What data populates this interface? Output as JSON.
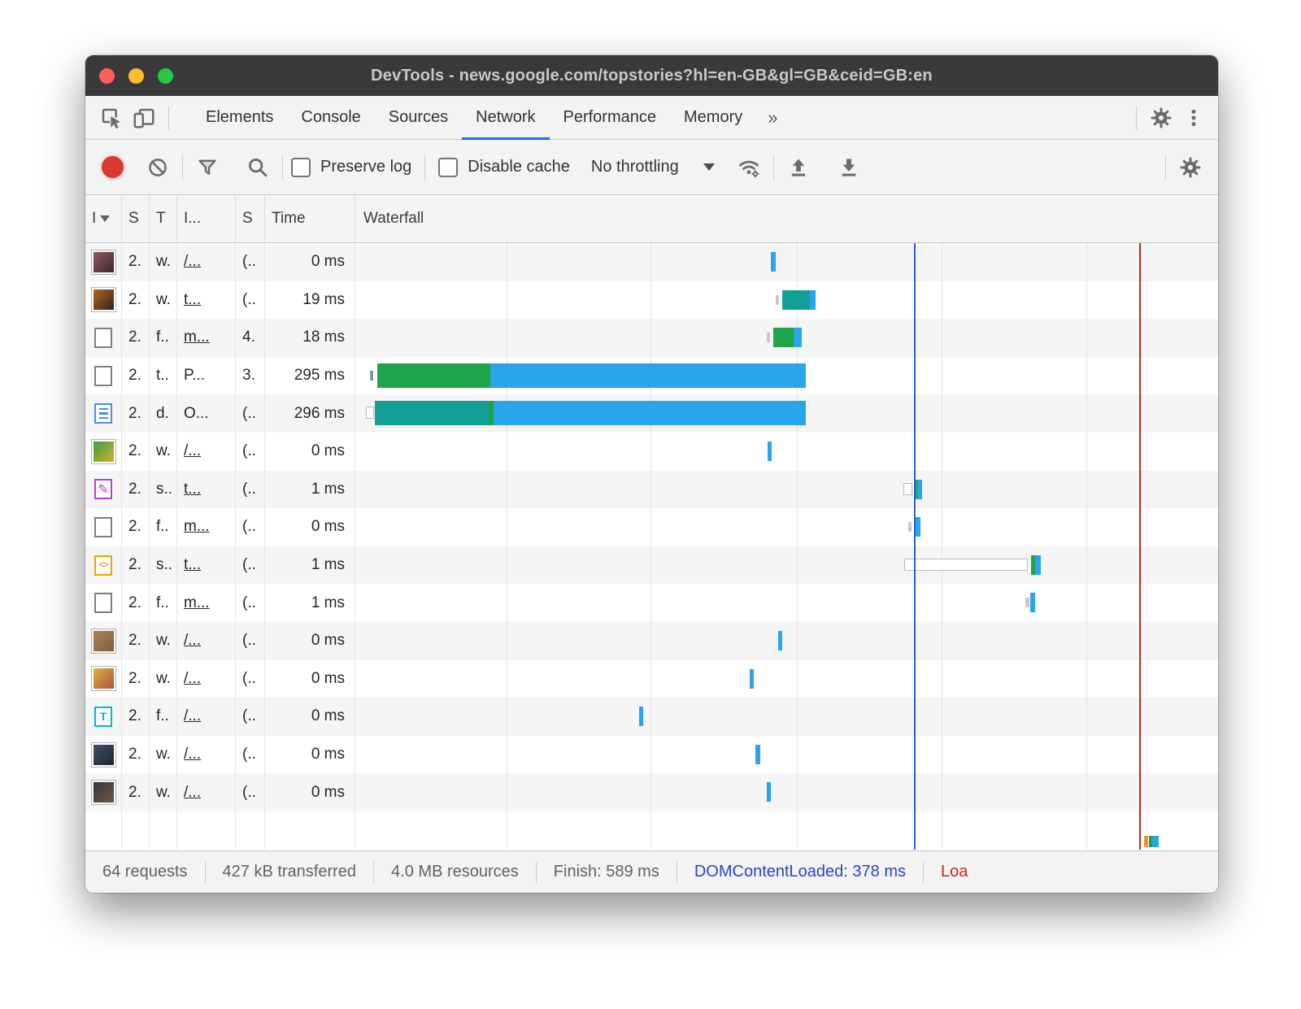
{
  "window": {
    "title": "DevTools - news.google.com/topstories?hl=en-GB&gl=GB&ceid=GB:en"
  },
  "tabs": {
    "items": [
      "Elements",
      "Console",
      "Sources",
      "Network",
      "Performance",
      "Memory"
    ],
    "selected": "Network",
    "overflow": "»"
  },
  "toolbar": {
    "preserve_log": "Preserve log",
    "disable_cache": "Disable cache",
    "throttling": "No throttling"
  },
  "table": {
    "headers": {
      "name": "I",
      "status": "S",
      "type": "T",
      "initiator": "I...",
      "size": "S",
      "time": "Time",
      "waterfall": "Waterfall"
    }
  },
  "waterfall": {
    "gridlines_pct": [
      17.5,
      34.2,
      51.2,
      68.0,
      84.7
    ],
    "domcontentloaded_line_pct": 64.75,
    "load_line_pct": 90.9,
    "colors": {
      "blue": "#2aa4ea",
      "green": "#1fa44a",
      "teal": "#12a096",
      "gray": "#c9c9c9",
      "dgray": "#8f8f8f",
      "orange": "#e8952f",
      "queue": "#ffffff",
      "dcl_line": "#2a5fd6",
      "load_line": "#bf2718"
    }
  },
  "rows": [
    {
      "icon": {
        "kind": "img",
        "colors": [
          "#9a5a60",
          "#32262c"
        ]
      },
      "status": "2.",
      "type": "w.",
      "initiator": "/...",
      "link": true,
      "size": "(..",
      "time": "0 ms",
      "bars": [
        {
          "c": "blue",
          "k": "t",
          "l": 48.2,
          "w": 0.5
        }
      ]
    },
    {
      "icon": {
        "kind": "img",
        "colors": [
          "#c06a22",
          "#23201f"
        ]
      },
      "status": "2.",
      "type": "w.",
      "initiator": "t...",
      "link": true,
      "size": "(..",
      "time": "19 ms",
      "bars": [
        {
          "c": "gray",
          "k": "g",
          "l": 48.7,
          "w": 0.4
        },
        {
          "c": "teal",
          "k": "t",
          "l": 49.5,
          "w": 3.2
        },
        {
          "c": "blue",
          "k": "t",
          "l": 52.7,
          "w": 0.6
        }
      ]
    },
    {
      "icon": {
        "kind": "square"
      },
      "status": "2.",
      "type": "f..",
      "initiator": "m...",
      "link": true,
      "size": "4.",
      "time": "18 ms",
      "bars": [
        {
          "c": "gray",
          "k": "g",
          "l": 47.7,
          "w": 0.4
        },
        {
          "c": "green",
          "k": "t",
          "l": 48.4,
          "w": 2.5
        },
        {
          "c": "blue",
          "k": "t",
          "l": 50.8,
          "w": 0.9
        }
      ]
    },
    {
      "icon": {
        "kind": "square"
      },
      "status": "2.",
      "type": "t..",
      "initiator": "P...",
      "link": false,
      "size": "3.",
      "time": "295 ms",
      "bars": [
        {
          "c": "dgray",
          "k": "g",
          "l": 1.7,
          "w": 0.4
        },
        {
          "c": "green",
          "k": "b",
          "l": 2.5,
          "w": 13.1
        },
        {
          "c": "blue",
          "k": "b",
          "l": 15.6,
          "w": 36.6
        }
      ]
    },
    {
      "icon": {
        "kind": "doc"
      },
      "status": "2.",
      "type": "d.",
      "initiator": "O...",
      "link": false,
      "size": "(..",
      "time": "296 ms",
      "bars": [
        {
          "c": "queue",
          "k": "q",
          "l": 1.2,
          "w": 1.0
        },
        {
          "c": "teal",
          "k": "b",
          "l": 2.3,
          "w": 13.2
        },
        {
          "c": "green",
          "k": "b",
          "l": 15.5,
          "w": 0.5
        },
        {
          "c": "blue",
          "k": "b",
          "l": 16.0,
          "w": 36.2
        }
      ]
    },
    {
      "icon": {
        "kind": "img",
        "colors": [
          "#2f9e44",
          "#e0b02e"
        ]
      },
      "status": "2.",
      "type": "w.",
      "initiator": "/...",
      "link": true,
      "size": "(..",
      "time": "0 ms",
      "bars": [
        {
          "c": "blue",
          "k": "t",
          "l": 47.8,
          "w": 0.5
        }
      ]
    },
    {
      "icon": {
        "kind": "css"
      },
      "status": "2.",
      "type": "s..",
      "initiator": "t...",
      "link": true,
      "size": "(..",
      "time": "1 ms",
      "bars": [
        {
          "c": "queue",
          "k": "q",
          "l": 63.5,
          "w": 1.1
        },
        {
          "c": "green",
          "k": "t",
          "l": 64.8,
          "w": 0.3
        },
        {
          "c": "blue",
          "k": "t",
          "l": 65.1,
          "w": 0.6
        }
      ]
    },
    {
      "icon": {
        "kind": "square"
      },
      "status": "2.",
      "type": "f..",
      "initiator": "m...",
      "link": true,
      "size": "(..",
      "time": "0 ms",
      "bars": [
        {
          "c": "gray",
          "k": "g",
          "l": 64.1,
          "w": 0.4
        },
        {
          "c": "blue",
          "k": "t",
          "l": 64.8,
          "w": 0.7
        }
      ]
    },
    {
      "icon": {
        "kind": "js"
      },
      "status": "2.",
      "type": "s..",
      "initiator": "t...",
      "link": true,
      "size": "(..",
      "time": "1 ms",
      "bars": [
        {
          "c": "queue",
          "k": "q",
          "l": 63.6,
          "w": 14.3
        },
        {
          "c": "green",
          "k": "t",
          "l": 78.3,
          "w": 0.5
        },
        {
          "c": "blue",
          "k": "t",
          "l": 78.8,
          "w": 0.7
        }
      ]
    },
    {
      "icon": {
        "kind": "square"
      },
      "status": "2.",
      "type": "f..",
      "initiator": "m...",
      "link": true,
      "size": "(..",
      "time": "1 ms",
      "bars": [
        {
          "c": "gray",
          "k": "g",
          "l": 77.7,
          "w": 0.4
        },
        {
          "c": "blue",
          "k": "t",
          "l": 78.2,
          "w": 0.6
        }
      ]
    },
    {
      "icon": {
        "kind": "img",
        "colors": [
          "#b08558",
          "#7a5c3e"
        ]
      },
      "status": "2.",
      "type": "w.",
      "initiator": "/...",
      "link": true,
      "size": "(..",
      "time": "0 ms",
      "bars": [
        {
          "c": "blue",
          "k": "t",
          "l": 49.0,
          "w": 0.5
        }
      ]
    },
    {
      "icon": {
        "kind": "img",
        "colors": [
          "#d8c040",
          "#b04840"
        ]
      },
      "status": "2.",
      "type": "w.",
      "initiator": "/...",
      "link": true,
      "size": "(..",
      "time": "0 ms",
      "bars": [
        {
          "c": "blue",
          "k": "t",
          "l": 45.7,
          "w": 0.5
        }
      ]
    },
    {
      "icon": {
        "kind": "fnt"
      },
      "status": "2.",
      "type": "f..",
      "initiator": "/...",
      "link": true,
      "size": "(..",
      "time": "0 ms",
      "bars": [
        {
          "c": "blue",
          "k": "t",
          "l": 32.9,
          "w": 0.5
        }
      ]
    },
    {
      "icon": {
        "kind": "img",
        "colors": [
          "#44566a",
          "#18202a"
        ]
      },
      "status": "2.",
      "type": "w.",
      "initiator": "/...",
      "link": true,
      "size": "(..",
      "time": "0 ms",
      "bars": [
        {
          "c": "blue",
          "k": "t",
          "l": 46.4,
          "w": 0.5
        }
      ]
    },
    {
      "icon": {
        "kind": "img",
        "colors": [
          "#30343a",
          "#6e5b48"
        ]
      },
      "status": "2.",
      "type": "w.",
      "initiator": "/...",
      "link": true,
      "size": "(..",
      "time": "0 ms",
      "bars": [
        {
          "c": "blue",
          "k": "t",
          "l": 47.7,
          "w": 0.5
        }
      ]
    },
    {
      "icon": {
        "kind": "none"
      },
      "status": "",
      "type": "",
      "initiator": "",
      "link": false,
      "size": "",
      "time": "",
      "bars": [
        {
          "c": "orange",
          "k": "m",
          "l": 91.4,
          "w": 0.5
        },
        {
          "c": "green",
          "k": "m",
          "l": 92.0,
          "w": 0.4
        },
        {
          "c": "blue",
          "k": "m",
          "l": 92.4,
          "w": 0.7
        }
      ]
    }
  ],
  "status_bar": {
    "requests": "64 requests",
    "transferred": "427 kB transferred",
    "resources": "4.0 MB resources",
    "finish": "Finish: 589 ms",
    "domcontentloaded": "DOMContentLoaded: 378 ms",
    "load": "Loa"
  }
}
